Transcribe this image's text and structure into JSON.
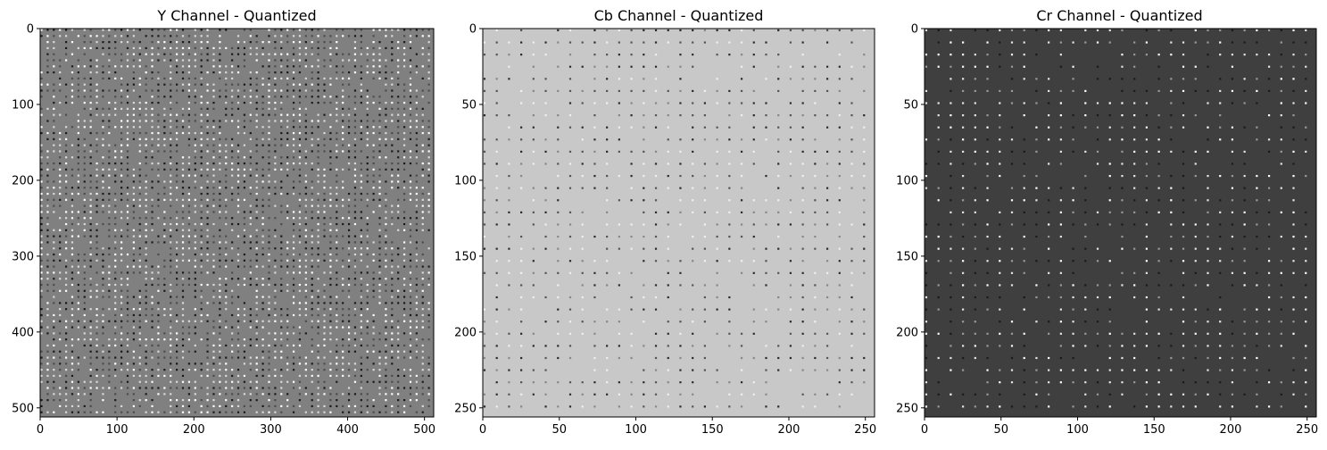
{
  "figure": {
    "background": "#ffffff"
  },
  "chart_data": [
    {
      "type": "heatmap",
      "title": "Y Channel - Quantized",
      "xlabel": "",
      "ylabel": "",
      "xlim": [
        0,
        512
      ],
      "ylim": [
        512,
        0
      ],
      "xticks": [
        0,
        100,
        200,
        300,
        400,
        500
      ],
      "yticks": [
        0,
        100,
        200,
        300,
        400,
        500
      ],
      "grid": false,
      "colormap": "gray",
      "base_color": "#808080",
      "block_size": 8,
      "dot_colors": [
        "#ffffff",
        "#1a1a1a",
        "#4d4d4d",
        "#d9d9d9"
      ]
    },
    {
      "type": "heatmap",
      "title": "Cb Channel - Quantized",
      "xlabel": "",
      "ylabel": "",
      "xlim": [
        0,
        256
      ],
      "ylim": [
        256,
        0
      ],
      "xticks": [
        0,
        50,
        100,
        150,
        200,
        250
      ],
      "yticks": [
        0,
        50,
        100,
        150,
        200,
        250
      ],
      "grid": false,
      "colormap": "gray",
      "base_color": "#c8c8c8",
      "block_size": 8,
      "dot_colors": [
        "#2a2a2a",
        "#555555",
        "#888888",
        "#f0f0f0"
      ]
    },
    {
      "type": "heatmap",
      "title": "Cr Channel - Quantized",
      "xlabel": "",
      "ylabel": "",
      "xlim": [
        0,
        256
      ],
      "ylim": [
        256,
        0
      ],
      "xticks": [
        0,
        50,
        100,
        150,
        200,
        250
      ],
      "yticks": [
        0,
        50,
        100,
        150,
        200,
        250
      ],
      "grid": false,
      "colormap": "gray",
      "base_color": "#3f3f3f",
      "block_size": 8,
      "dot_colors": [
        "#e6e6e6",
        "#ffffff",
        "#9a9a9a",
        "#1a1a1a"
      ]
    }
  ]
}
